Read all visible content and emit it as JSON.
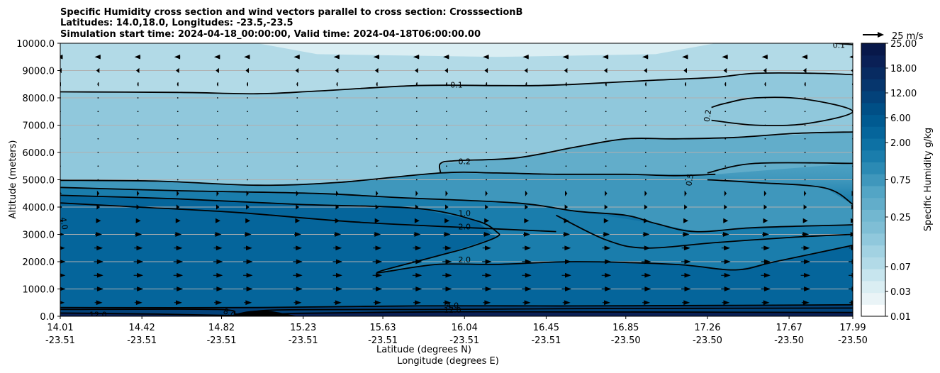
{
  "chart_data": {
    "type": "contour",
    "title_lines": [
      "Specific Humidity cross section and wind vectors parallel to cross section: CrosssectionB",
      "Latitudes: 14.0,18.0, Longitudes: -23.5,-23.5",
      "Simulation start time: 2024-04-18_00:00:00, Valid time: 2024-04-18T06:00:00.00"
    ],
    "ylabel": "Altitude (meters)",
    "xlabel_lines": [
      "Latitude (degrees N)",
      "Longitude (degrees E)"
    ],
    "ylim": [
      0,
      10000
    ],
    "grid": "horizontal",
    "y_ticks": [
      {
        "value": 0,
        "label": "0.0"
      },
      {
        "value": 1000,
        "label": "1000.0"
      },
      {
        "value": 2000,
        "label": "2000.0"
      },
      {
        "value": 3000,
        "label": "3000.0"
      },
      {
        "value": 4000,
        "label": "4000.0"
      },
      {
        "value": 5000,
        "label": "5000.0"
      },
      {
        "value": 6000,
        "label": "6000.0"
      },
      {
        "value": 7000,
        "label": "7000.0"
      },
      {
        "value": 8000,
        "label": "8000.0"
      },
      {
        "value": 9000,
        "label": "9000.0"
      },
      {
        "value": 10000,
        "label": "10000.0"
      }
    ],
    "x_ticks": [
      {
        "lat": 14.01,
        "lat_label": "14.01",
        "lon_label": "-23.51"
      },
      {
        "lat": 14.42,
        "lat_label": "14.42",
        "lon_label": "-23.51"
      },
      {
        "lat": 14.82,
        "lat_label": "14.82",
        "lon_label": "-23.51"
      },
      {
        "lat": 15.23,
        "lat_label": "15.23",
        "lon_label": "-23.51"
      },
      {
        "lat": 15.63,
        "lat_label": "15.63",
        "lon_label": "-23.51"
      },
      {
        "lat": 16.04,
        "lat_label": "16.04",
        "lon_label": "-23.51"
      },
      {
        "lat": 16.45,
        "lat_label": "16.45",
        "lon_label": "-23.51"
      },
      {
        "lat": 16.85,
        "lat_label": "16.85",
        "lon_label": "-23.50"
      },
      {
        "lat": 17.26,
        "lat_label": "17.26",
        "lon_label": "-23.50"
      },
      {
        "lat": 17.67,
        "lat_label": "17.67",
        "lon_label": "-23.50"
      },
      {
        "lat": 17.99,
        "lat_label": "17.99",
        "lon_label": "-23.50"
      }
    ],
    "colorbar": {
      "label": "Specific Humidity g/kg",
      "levels": [
        0.01,
        0.02,
        0.03,
        0.05,
        0.07,
        0.1,
        0.15,
        0.2,
        0.25,
        0.3,
        0.5,
        0.75,
        1,
        1.5,
        2,
        4,
        6,
        8,
        12,
        15,
        18,
        21,
        25
      ],
      "colors": [
        "#ffffff",
        "#eaf4f7",
        "#daeef3",
        "#c7e5ee",
        "#b2dae7",
        "#a2d2e2",
        "#90c8dc",
        "#7fbed5",
        "#72b7d0",
        "#62adca",
        "#53a5c5",
        "#3f97bc",
        "#2b8ab4",
        "#1a7dac",
        "#0d71a4",
        "#05659b",
        "#005a91",
        "#004f86",
        "#03427a",
        "#06366d",
        "#082b61",
        "#0a2056",
        "#08184a"
      ],
      "tick_labels": [
        "0.01",
        "0.03",
        "0.07",
        "0.25",
        "0.75",
        "2.00",
        "6.00",
        "12.00",
        "18.00",
        "25.00"
      ],
      "tick_levels": [
        0.01,
        0.03,
        0.07,
        0.25,
        0.75,
        2,
        6,
        12,
        18,
        25
      ]
    },
    "contours": [
      {
        "level": "0.1",
        "points": [
          [
            14.01,
            8220
          ],
          [
            14.6,
            8200
          ],
          [
            15.0,
            8150
          ],
          [
            15.3,
            8250
          ],
          [
            15.8,
            8450
          ],
          [
            16.2,
            8450
          ],
          [
            16.4,
            8450
          ],
          [
            16.6,
            8500
          ],
          [
            17.0,
            8650
          ],
          [
            17.3,
            8750
          ],
          [
            17.5,
            8900
          ],
          [
            17.8,
            8900
          ],
          [
            17.99,
            8850
          ]
        ],
        "labels": [
          {
            "text": "0.1",
            "lat": 16.0,
            "alt": 8480
          }
        ]
      },
      {
        "level": "0.1",
        "points": [
          [
            17.9,
            10000
          ],
          [
            17.99,
            9950
          ]
        ],
        "labels": [
          {
            "text": "0.1",
            "lat": 17.92,
            "alt": 9930
          }
        ]
      },
      {
        "level": "0.2",
        "points": [
          [
            15.92,
            5250
          ],
          [
            15.92,
            5600
          ],
          [
            16.0,
            5700
          ],
          [
            16.3,
            5800
          ],
          [
            16.6,
            6200
          ],
          [
            16.85,
            6500
          ],
          [
            17.1,
            6500
          ],
          [
            17.4,
            6550
          ],
          [
            17.7,
            6700
          ],
          [
            17.99,
            6750
          ]
        ],
        "labels": [
          {
            "text": "0.2",
            "lat": 16.04,
            "alt": 5680
          }
        ]
      },
      {
        "level": "0.2",
        "points": [
          [
            17.28,
            7650
          ],
          [
            17.35,
            7800
          ],
          [
            17.5,
            8000
          ],
          [
            17.75,
            7950
          ],
          [
            17.99,
            7500
          ],
          [
            17.75,
            7050
          ],
          [
            17.5,
            7000
          ],
          [
            17.28,
            7180
          ]
        ],
        "labels": [
          {
            "text": "0.2",
            "lat": 17.26,
            "alt": 7350,
            "rotate": -80
          }
        ]
      },
      {
        "level": "0.5",
        "points": [
          [
            14.01,
            4980
          ],
          [
            14.5,
            4950
          ],
          [
            15.0,
            4800
          ],
          [
            15.4,
            4900
          ],
          [
            15.92,
            5250
          ],
          [
            16.2,
            5250
          ],
          [
            16.5,
            5200
          ],
          [
            16.85,
            5200
          ],
          [
            17.1,
            5150
          ],
          [
            17.3,
            5200
          ]
        ],
        "labels": []
      },
      {
        "level": "0.5",
        "points": [
          [
            17.26,
            5250
          ],
          [
            17.5,
            5600
          ],
          [
            17.99,
            5600
          ]
        ],
        "labels": [
          {
            "text": "0.5",
            "lat": 17.17,
            "alt": 5000,
            "rotate": -80
          }
        ]
      },
      {
        "level": "0.5",
        "points": [
          [
            17.26,
            5000
          ],
          [
            17.5,
            4900
          ],
          [
            17.85,
            4700
          ],
          [
            17.99,
            4100
          ]
        ],
        "labels": []
      },
      {
        "level": "1.0",
        "points": [
          [
            14.01,
            4720
          ],
          [
            14.6,
            4600
          ],
          [
            15.3,
            4500
          ],
          [
            15.7,
            4350
          ],
          [
            16.3,
            4150
          ],
          [
            16.6,
            3850
          ],
          [
            16.85,
            3700
          ],
          [
            17.0,
            3400
          ],
          [
            17.2,
            3100
          ],
          [
            17.5,
            3250
          ],
          [
            17.99,
            3350
          ]
        ],
        "labels": [
          {
            "text": "1.0",
            "lat": 16.04,
            "alt": 3780
          }
        ]
      },
      {
        "level": "2.0",
        "points": [
          [
            14.01,
            4430
          ],
          [
            14.6,
            4300
          ],
          [
            15.2,
            4100
          ],
          [
            15.8,
            3950
          ],
          [
            16.1,
            3500
          ],
          [
            16.2,
            3100
          ],
          [
            16.2,
            2900
          ],
          [
            16.05,
            2500
          ],
          [
            15.9,
            2200
          ],
          [
            15.6,
            1600
          ],
          [
            15.9,
            1900
          ],
          [
            16.2,
            1900
          ],
          [
            16.6,
            2000
          ],
          [
            17.1,
            1900
          ],
          [
            17.4,
            1700
          ],
          [
            17.6,
            2000
          ],
          [
            17.99,
            2600
          ]
        ],
        "labels": [
          {
            "text": "2.0",
            "lat": 16.04,
            "alt": 3280
          },
          {
            "text": "2.0",
            "lat": 16.04,
            "alt": 2080
          }
        ]
      },
      {
        "level": "2.0",
        "points": [
          [
            16.5,
            3700
          ],
          [
            16.75,
            2800
          ],
          [
            16.95,
            2500
          ],
          [
            17.3,
            2700
          ],
          [
            17.7,
            2900
          ],
          [
            17.99,
            3000
          ]
        ],
        "labels": []
      },
      {
        "level": "4.0",
        "points": [
          [
            14.01,
            4150
          ],
          [
            14.4,
            4000
          ],
          [
            14.9,
            3800
          ],
          [
            15.5,
            3450
          ],
          [
            16.2,
            3200
          ],
          [
            16.5,
            3100
          ]
        ],
        "labels": [
          {
            "text": "4.0",
            "lat": 14.03,
            "alt": 3400,
            "rotate": 80
          }
        ]
      },
      {
        "level": "4.0",
        "points": [
          [
            14.01,
            320
          ],
          [
            15.0,
            320
          ],
          [
            15.8,
            380
          ],
          [
            16.6,
            380
          ],
          [
            17.4,
            400
          ],
          [
            17.99,
            420
          ]
        ],
        "labels": [
          {
            "text": "4.0",
            "lat": 15.98,
            "alt": 400
          }
        ]
      },
      {
        "level": "8.0",
        "points": [
          [
            14.01,
            250
          ],
          [
            14.8,
            250
          ],
          [
            14.9,
            80
          ],
          [
            15.1,
            230
          ],
          [
            15.9,
            250
          ],
          [
            16.6,
            280
          ],
          [
            17.99,
            300
          ]
        ],
        "labels": [
          {
            "text": "8.0",
            "lat": 14.86,
            "alt": 120,
            "rotate": 25
          }
        ]
      },
      {
        "level": "12.0",
        "points": [
          [
            14.01,
            120
          ],
          [
            14.5,
            80
          ],
          [
            14.8,
            40
          ],
          [
            15.0,
            30
          ],
          [
            15.2,
            110
          ],
          [
            15.9,
            160
          ],
          [
            16.6,
            160
          ],
          [
            17.99,
            140
          ]
        ],
        "labels": [
          {
            "text": "12.0",
            "lat": 14.2,
            "alt": 60
          },
          {
            "text": "12.0",
            "lat": 15.98,
            "alt": 230
          }
        ]
      }
    ],
    "wind_vectors": {
      "reference_label": "25 m/s",
      "reference_speed": 25,
      "columns": [
        14.01,
        14.2,
        14.4,
        14.6,
        14.8,
        14.95,
        15.2,
        15.4,
        15.6,
        15.8,
        15.95,
        16.15,
        16.35,
        16.55,
        16.75,
        16.95,
        17.15,
        17.35,
        17.55,
        17.75,
        17.99
      ],
      "rows": [
        {
          "alt": 9500,
          "speed": -6
        },
        {
          "alt": 9000,
          "speed": -3
        },
        {
          "alt": 8500,
          "speed": -1
        },
        {
          "alt": 8000,
          "speed": 0
        },
        {
          "alt": 7500,
          "speed": 0
        },
        {
          "alt": 7000,
          "speed": 0
        },
        {
          "alt": 6500,
          "speed": 0
        },
        {
          "alt": 6000,
          "speed": 0
        },
        {
          "alt": 5500,
          "speed": 0
        },
        {
          "alt": 5000,
          "speed": 0
        },
        {
          "alt": 4500,
          "speed": 2
        },
        {
          "alt": 4000,
          "speed": 3
        },
        {
          "alt": 3500,
          "speed": 5
        },
        {
          "alt": 3000,
          "speed": 7
        },
        {
          "alt": 2500,
          "speed": 9
        },
        {
          "alt": 2000,
          "speed": 10
        },
        {
          "alt": 1500,
          "speed": 10
        },
        {
          "alt": 1000,
          "speed": 10
        },
        {
          "alt": 500,
          "speed": 8
        }
      ]
    },
    "terrain": {
      "points": [
        [
          14.85,
          0
        ],
        [
          14.95,
          180
        ],
        [
          15.05,
          200
        ],
        [
          15.15,
          80
        ],
        [
          15.2,
          0
        ]
      ],
      "color": "#000000"
    }
  }
}
